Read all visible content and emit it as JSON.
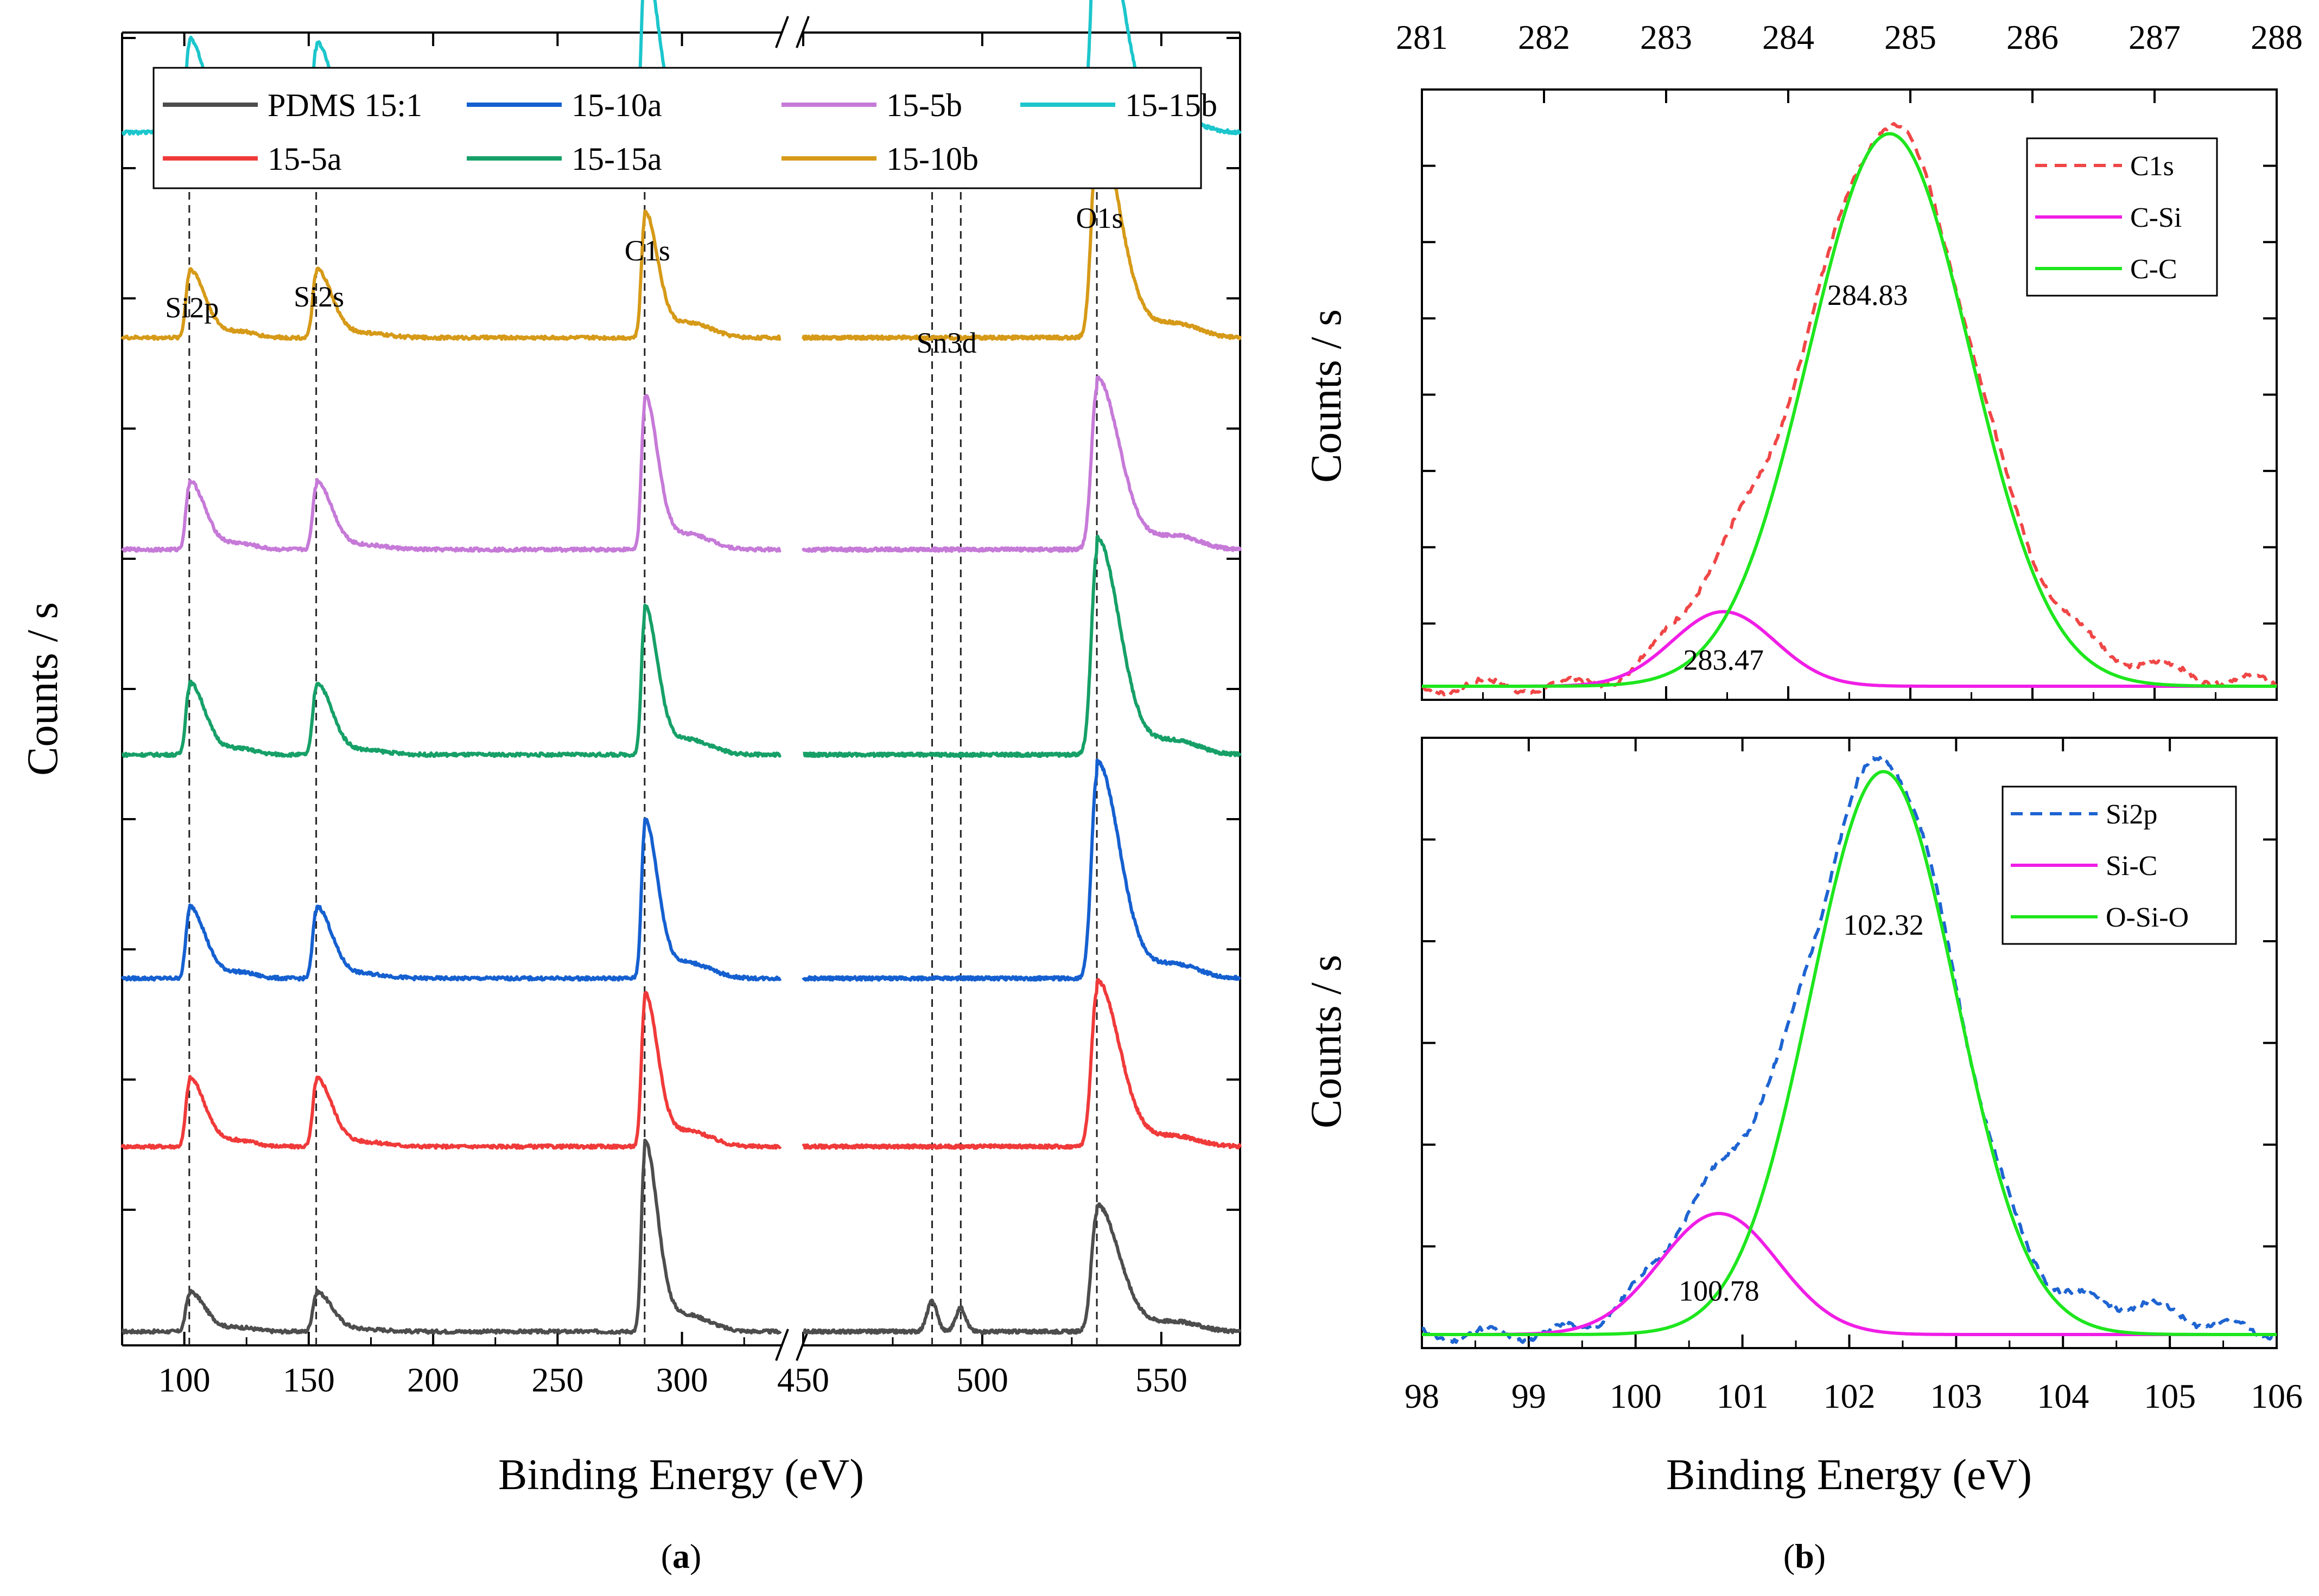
{
  "chart_data": [
    {
      "panel": "a",
      "type": "line",
      "title": "",
      "xlabel": "Binding Energy (eV)",
      "ylabel": "Counts / s",
      "axis_break": "//",
      "x_segments": [
        {
          "xlim": [
            75,
            340
          ],
          "ticks": [
            100,
            150,
            200,
            250,
            300
          ]
        },
        {
          "xlim": [
            450,
            572
          ],
          "ticks": [
            450,
            500,
            550
          ]
        }
      ],
      "ylim": [
        0,
        7.8
      ],
      "grid": false,
      "legend": {
        "position": "top",
        "entries": [
          "PDMS 15:1",
          "15-10a",
          "15-5b",
          "15-15b",
          "15-5a",
          "15-15a",
          "15-10b"
        ]
      },
      "peak_labels": [
        {
          "label": "Si2p",
          "x": 102
        },
        {
          "label": "Si2s",
          "x": 153
        },
        {
          "label": "C1s",
          "x": 285
        },
        {
          "label": "Sn3d",
          "x": 487
        },
        {
          "label": "O1s",
          "x": 532
        }
      ],
      "reference_lines_x": [
        102,
        153,
        285,
        486,
        494,
        532
      ],
      "peaks": [
        {
          "center": 102,
          "width": 1.4,
          "tail_width": 6
        },
        {
          "center": 153,
          "width": 1.4,
          "tail_width": 6
        },
        {
          "center": 285,
          "width": 1.3,
          "tail_width": 5
        },
        {
          "center": 305,
          "width": 8,
          "tail_width": 8
        },
        {
          "center": 123,
          "width": 6,
          "tail_width": 6
        },
        {
          "center": 175,
          "width": 8,
          "tail_width": 8
        },
        {
          "center": 532,
          "width": 1.5,
          "tail_width": 6
        },
        {
          "center": 555,
          "width": 6,
          "tail_width": 6
        }
      ],
      "series": [
        {
          "name": "PDMS 15:1",
          "color": "#4d4d4d",
          "baseline": 0.05,
          "amplitudes": [
            0.22,
            0.22,
            1.05,
            0.07,
            0.02,
            0.01,
            0.7,
            0.05
          ],
          "sn_peaks": [
            {
              "center": 486,
              "amp": 0.18
            },
            {
              "center": 494,
              "amp": 0.14
            }
          ]
        },
        {
          "name": "15-5a",
          "color": "#f03a3a",
          "baseline": 1.15,
          "amplitudes": [
            0.38,
            0.38,
            0.85,
            0.07,
            0.03,
            0.02,
            0.92,
            0.05
          ],
          "sn_peaks": []
        },
        {
          "name": "15-10a",
          "color": "#1560d0",
          "baseline": 2.15,
          "amplitudes": [
            0.4,
            0.4,
            0.88,
            0.07,
            0.03,
            0.02,
            1.2,
            0.07
          ],
          "sn_peaks": []
        },
        {
          "name": "15-15a",
          "color": "#16a068",
          "baseline": 3.48,
          "amplitudes": [
            0.4,
            0.4,
            0.82,
            0.07,
            0.03,
            0.02,
            1.2,
            0.07
          ],
          "sn_peaks": []
        },
        {
          "name": "15-5b",
          "color": "#c67ad8",
          "baseline": 4.7,
          "amplitudes": [
            0.38,
            0.38,
            0.85,
            0.07,
            0.03,
            0.02,
            0.95,
            0.07
          ],
          "sn_peaks": []
        },
        {
          "name": "15-10b",
          "color": "#d69a18",
          "baseline": 5.96,
          "amplitudes": [
            0.38,
            0.38,
            0.7,
            0.07,
            0.03,
            0.02,
            1.18,
            0.07
          ],
          "sn_peaks": []
        },
        {
          "name": "15-15b",
          "color": "#1cc6cc",
          "baseline": 7.18,
          "amplitudes": [
            0.52,
            0.5,
            0.98,
            0.07,
            0.03,
            0.02,
            1.42,
            0.07
          ],
          "sn_peaks": []
        }
      ]
    },
    {
      "panel": "b-top",
      "type": "line",
      "title": "",
      "xlabel": "",
      "ylabel": "Counts / s",
      "x_axis_position": "top",
      "xlim": [
        281,
        288
      ],
      "x_ticks": [
        281,
        282,
        283,
        284,
        285,
        286,
        287,
        288
      ],
      "ylim": [
        0,
        1.08
      ],
      "grid": false,
      "legend": {
        "position": "top-right",
        "entries": [
          "C1s",
          "C-Si",
          "C-C"
        ]
      },
      "series": [
        {
          "name": "C1s",
          "color": "#f04646",
          "style": "dashed",
          "role": "envelope"
        },
        {
          "name": "C-Si",
          "color": "#f01ee6",
          "style": "solid",
          "role": "component",
          "center": 283.47,
          "amplitude": 0.135,
          "sigma": 0.42
        },
        {
          "name": "C-C",
          "color": "#1ee61e",
          "style": "solid",
          "role": "component",
          "center": 284.83,
          "amplitude": 1.0,
          "sigma": 0.66
        }
      ],
      "value_labels": [
        "284.83",
        "283.47"
      ]
    },
    {
      "panel": "b-bottom",
      "type": "line",
      "title": "",
      "xlabel": "Binding Energy (eV)",
      "ylabel": "Counts / s",
      "xlim": [
        98,
        106
      ],
      "x_ticks": [
        98,
        99,
        100,
        101,
        102,
        103,
        104,
        105,
        106
      ],
      "ylim": [
        0,
        1.06
      ],
      "grid": false,
      "legend": {
        "position": "top-right",
        "entries": [
          "Si2p",
          "Si-C",
          "O-Si-O"
        ]
      },
      "series": [
        {
          "name": "Si2p",
          "color": "#1e64d2",
          "style": "dashed",
          "role": "envelope"
        },
        {
          "name": "Si-C",
          "color": "#f01ee6",
          "style": "solid",
          "role": "component",
          "center": 100.78,
          "amplitude": 0.215,
          "sigma": 0.55
        },
        {
          "name": "O-Si-O",
          "color": "#1ee61e",
          "style": "solid",
          "role": "component",
          "center": 102.32,
          "amplitude": 1.0,
          "sigma": 0.68
        }
      ],
      "value_labels": [
        "102.32",
        "100.78"
      ]
    }
  ],
  "captions": {
    "a": "a",
    "b": "b"
  }
}
